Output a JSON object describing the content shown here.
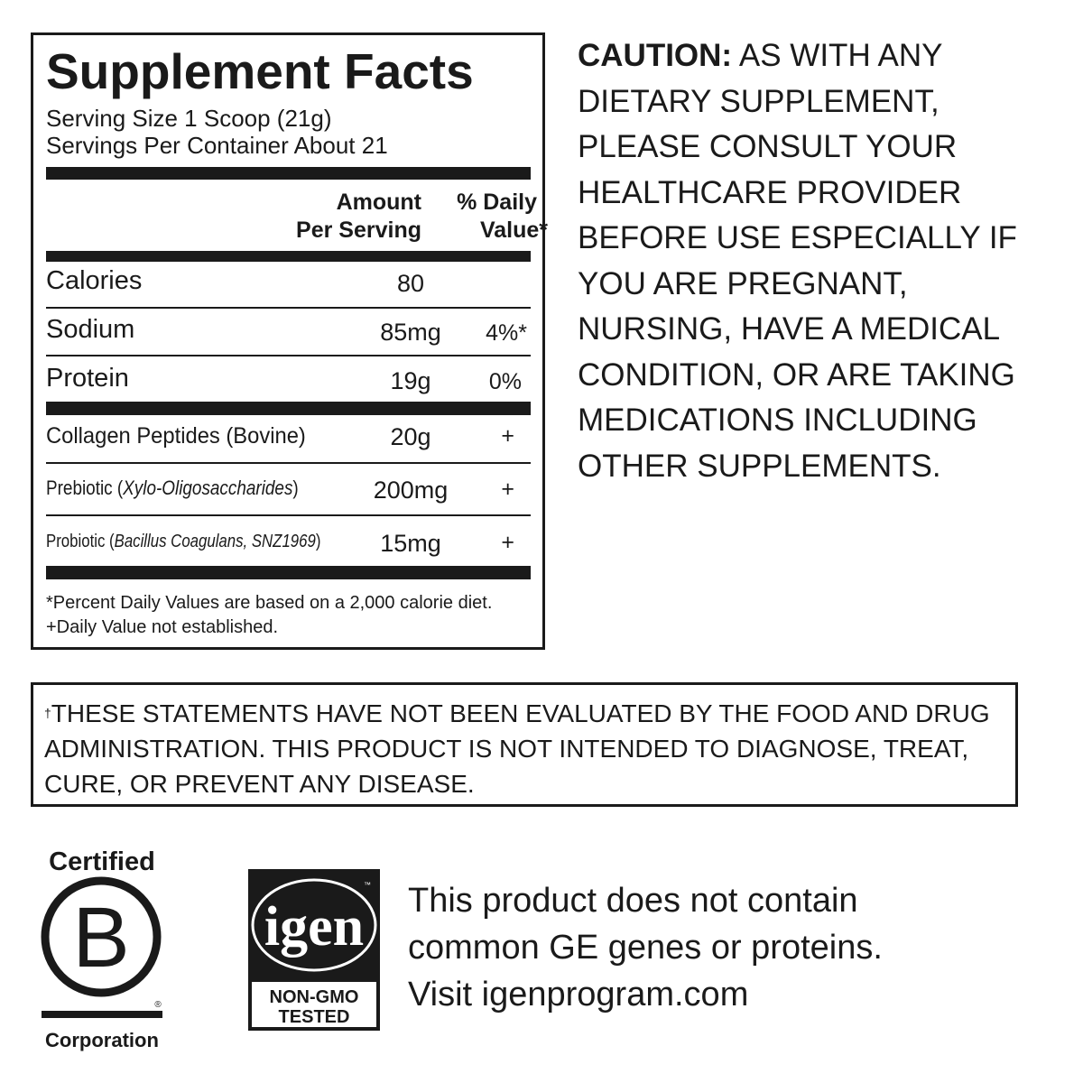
{
  "facts": {
    "title": "Supplement Facts",
    "serving_size": "Serving Size 1 Scoop (21g)",
    "servings_per_container": "Servings Per Container About 21",
    "header_amount_1": "Amount",
    "header_amount_2": "Per Serving",
    "header_dv_1": "% Daily",
    "header_dv_2": "Value*",
    "rows": [
      {
        "name": "Calories",
        "amount": "80",
        "dv": ""
      },
      {
        "name": "Sodium",
        "amount": "85mg",
        "dv": "4%*"
      },
      {
        "name": "Protein",
        "amount": "19g",
        "dv": "0%"
      }
    ],
    "ingredients": [
      {
        "name": "Collagen Peptides (Bovine)",
        "name_plain": "",
        "name_italic": "",
        "amount": "20g",
        "dv": "+"
      },
      {
        "name_plain": "Prebiotic (",
        "name_italic": "Xylo-Oligosaccharides",
        "name_close": ")",
        "amount": "200mg",
        "dv": "+"
      },
      {
        "name_plain": "Probiotic (",
        "name_italic": "Bacillus Coagulans, SNZ1969",
        "name_close": ")",
        "amount": "15mg",
        "dv": "+"
      }
    ],
    "footnote_1": "*Percent Daily Values are based on a 2,000 calorie diet.",
    "footnote_2": "+Daily Value not established."
  },
  "caution": {
    "label": "CAUTION:",
    "text": " AS WITH ANY DIETARY SUPPLEMENT, PLEASE CONSULT YOUR HEALTHCARE PROVIDER BEFORE USE ESPECIALLY IF YOU ARE PREGNANT, NURSING, HAVE A MEDICAL CONDITION, OR ARE TAKING MEDICATIONS INCLUDING OTHER SUPPLEMENTS."
  },
  "disclaimer": {
    "dagger": "†",
    "text": "THESE STATEMENTS HAVE NOT BEEN EVALUATED BY THE FOOD AND DRUG ADMINISTRATION. THIS PRODUCT IS NOT INTENDED TO DIAGNOSE, TREAT, CURE, OR PREVENT ANY DISEASE."
  },
  "bcorp": {
    "top": "Certified",
    "letter": "B",
    "bottom": "Corporation",
    "mark": "®"
  },
  "igen": {
    "logo": "igen",
    "tm": "™",
    "line1": "NON-GMO",
    "line2": "TESTED"
  },
  "gmo_statement": {
    "line1": "This product does not contain",
    "line2": "common GE genes or proteins.",
    "line3": "Visit igenprogram.com"
  }
}
